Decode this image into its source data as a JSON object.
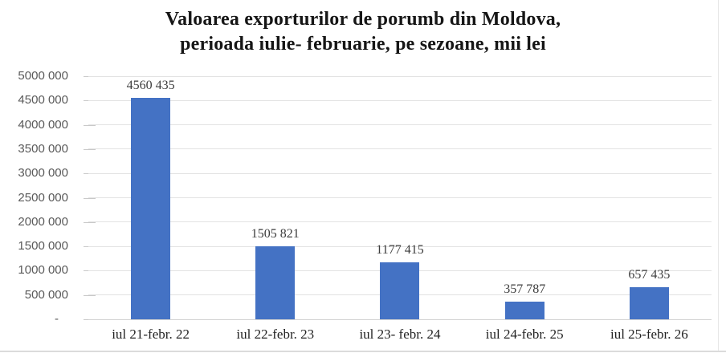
{
  "figure": {
    "title_line1": "Valoarea exporturilor de porumb din Moldova,",
    "title_line2": "perioada iulie- februarie, pe sezoane, mii lei"
  },
  "chart_data": {
    "type": "bar",
    "title": "Valoarea exporturilor de porumb din Moldova, perioada iulie- februarie, pe sezoane, mii lei",
    "xlabel": "",
    "ylabel": "",
    "categories": [
      "iul 21-febr. 22",
      "iul 22-febr. 23",
      "iul 23- febr. 24",
      "iul 24-febr. 25",
      "iul 25-febr. 26"
    ],
    "values": [
      4560435,
      1505821,
      1177415,
      357787,
      657435
    ],
    "value_labels": [
      "4560 435",
      "1505 821",
      "1177 415",
      "357 787",
      "657 435"
    ],
    "ylim": [
      0,
      5000000
    ],
    "y_step": 500000,
    "y_ticks": [
      {
        "value": 5000000,
        "label": "5000 000"
      },
      {
        "value": 4500000,
        "label": "4500 000"
      },
      {
        "value": 4000000,
        "label": "4000 000"
      },
      {
        "value": 3500000,
        "label": "3500 000"
      },
      {
        "value": 3000000,
        "label": "3000 000"
      },
      {
        "value": 2500000,
        "label": "2500 000"
      },
      {
        "value": 2000000,
        "label": "2000 000"
      },
      {
        "value": 1500000,
        "label": "1500 000"
      },
      {
        "value": 1000000,
        "label": "1000 000"
      },
      {
        "value": 500000,
        "label": "500 000"
      },
      {
        "value": 0,
        "label": "-"
      }
    ],
    "grid": true,
    "legend": "none",
    "bar_color": "#4472c4",
    "colors": {
      "gridline": "#e2e2e2",
      "axis_line": "#d2d2d2",
      "y_label_text": "#595959",
      "value_label_text": "#3c3c3c",
      "category_label_text": "#222222",
      "title_text": "#161616"
    }
  }
}
